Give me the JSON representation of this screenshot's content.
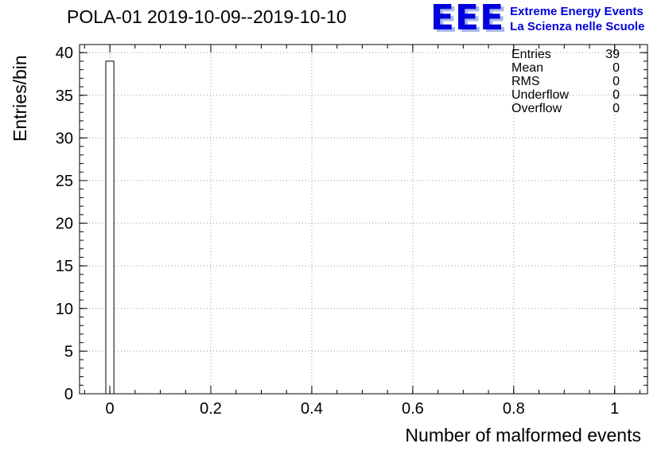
{
  "header": {
    "title": "POLA-01 2019-10-09--2019-10-10",
    "logo": {
      "text": "EEE",
      "line1": "Extreme Energy Events",
      "line2": "La Scienza nelle Scuole",
      "color": "#0000dd"
    }
  },
  "stats": {
    "rows": [
      {
        "label": "Entries",
        "value": "39"
      },
      {
        "label": "Mean",
        "value": "0"
      },
      {
        "label": "RMS",
        "value": "0"
      },
      {
        "label": "Underflow",
        "value": "0"
      },
      {
        "label": "Overflow",
        "value": "0"
      }
    ]
  },
  "chart_data": {
    "type": "bar",
    "title": "POLA-01 2019-10-09--2019-10-10",
    "xlabel": "Number of malformed events",
    "ylabel": "Entries/bin",
    "xlim": [
      -0.06,
      1.065
    ],
    "ylim": [
      0,
      40.95
    ],
    "x_ticks": [
      0,
      0.2,
      0.4,
      0.6,
      0.8,
      1
    ],
    "x_tick_labels": [
      "0",
      "0.2",
      "0.4",
      "0.6",
      "0.8",
      "1"
    ],
    "x_minor_step": 0.05,
    "y_ticks": [
      0,
      5,
      10,
      15,
      20,
      25,
      30,
      35,
      40
    ],
    "y_tick_labels": [
      "0",
      "5",
      "10",
      "15",
      "20",
      "25",
      "30",
      "35",
      "40"
    ],
    "y_minor_step": 1,
    "grid": true,
    "grid_color": "#9a9a9a",
    "frame_color": "#000000",
    "bars": [
      {
        "x": 0,
        "width": 0.016,
        "height": 39
      }
    ],
    "bar_fill": "#ffffff",
    "bar_stroke": "#000000"
  }
}
